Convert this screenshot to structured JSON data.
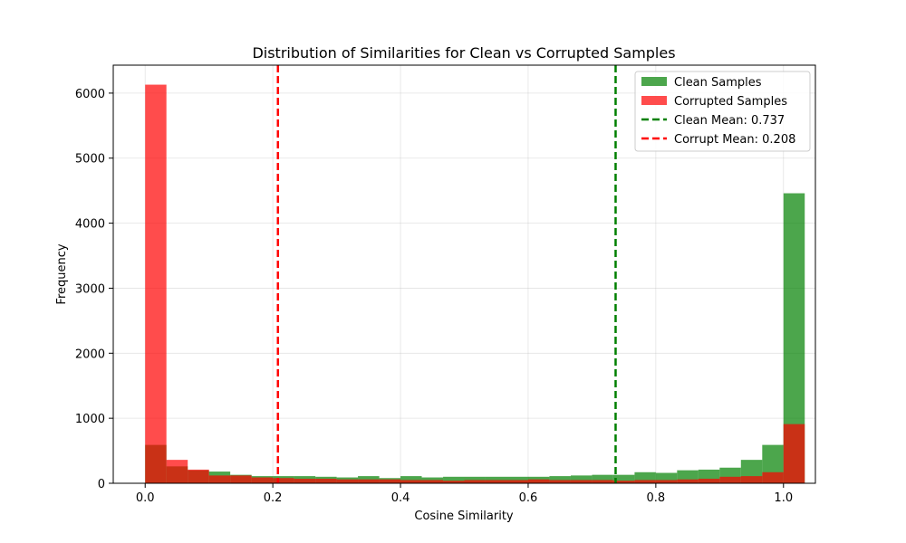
{
  "chart_data": {
    "type": "bar",
    "title": "Distribution of Similarities for Clean vs Corrupted Samples",
    "xlabel": "Cosine Similarity",
    "ylabel": "Frequency",
    "xlim": [
      -0.05,
      1.05
    ],
    "ylim": [
      0,
      6430
    ],
    "xticks": [
      0.0,
      0.2,
      0.4,
      0.6,
      0.8,
      1.0
    ],
    "xtick_labels": [
      "0.0",
      "0.2",
      "0.4",
      "0.6",
      "0.8",
      "1.0"
    ],
    "yticks": [
      0,
      1000,
      2000,
      3000,
      4000,
      5000,
      6000
    ],
    "ytick_labels": [
      "0",
      "1000",
      "2000",
      "3000",
      "4000",
      "5000",
      "6000"
    ],
    "grid": true,
    "legend_position": "top-right",
    "bin_edges": [
      0.0,
      0.0333,
      0.0667,
      0.1,
      0.1333,
      0.1667,
      0.2,
      0.2333,
      0.2667,
      0.3,
      0.3333,
      0.3667,
      0.4,
      0.4333,
      0.4667,
      0.5,
      0.5333,
      0.5667,
      0.6,
      0.6333,
      0.6667,
      0.7,
      0.7333,
      0.7667,
      0.8,
      0.8333,
      0.8667,
      0.9,
      0.9333,
      0.9667,
      1.0
    ],
    "series": [
      {
        "name": "Clean Samples",
        "color": "#008000",
        "opacity": 0.7,
        "values": [
          590,
          260,
          200,
          180,
          130,
          110,
          110,
          110,
          100,
          90,
          110,
          80,
          110,
          90,
          100,
          100,
          100,
          100,
          100,
          110,
          120,
          130,
          130,
          170,
          160,
          200,
          210,
          240,
          360,
          590,
          4460
        ]
      },
      {
        "name": "Corrupted Samples",
        "color": "#ff0000",
        "opacity": 0.7,
        "values": [
          6130,
          360,
          210,
          120,
          120,
          90,
          80,
          70,
          70,
          60,
          60,
          60,
          50,
          50,
          40,
          50,
          50,
          50,
          60,
          50,
          50,
          50,
          40,
          50,
          50,
          60,
          70,
          100,
          110,
          170,
          910
        ]
      }
    ],
    "reference_lines": [
      {
        "label": "Clean Mean: 0.737",
        "x": 0.737,
        "color": "#008000"
      },
      {
        "label": "Corrupt Mean: 0.208",
        "x": 0.208,
        "color": "#ff0000"
      }
    ]
  }
}
